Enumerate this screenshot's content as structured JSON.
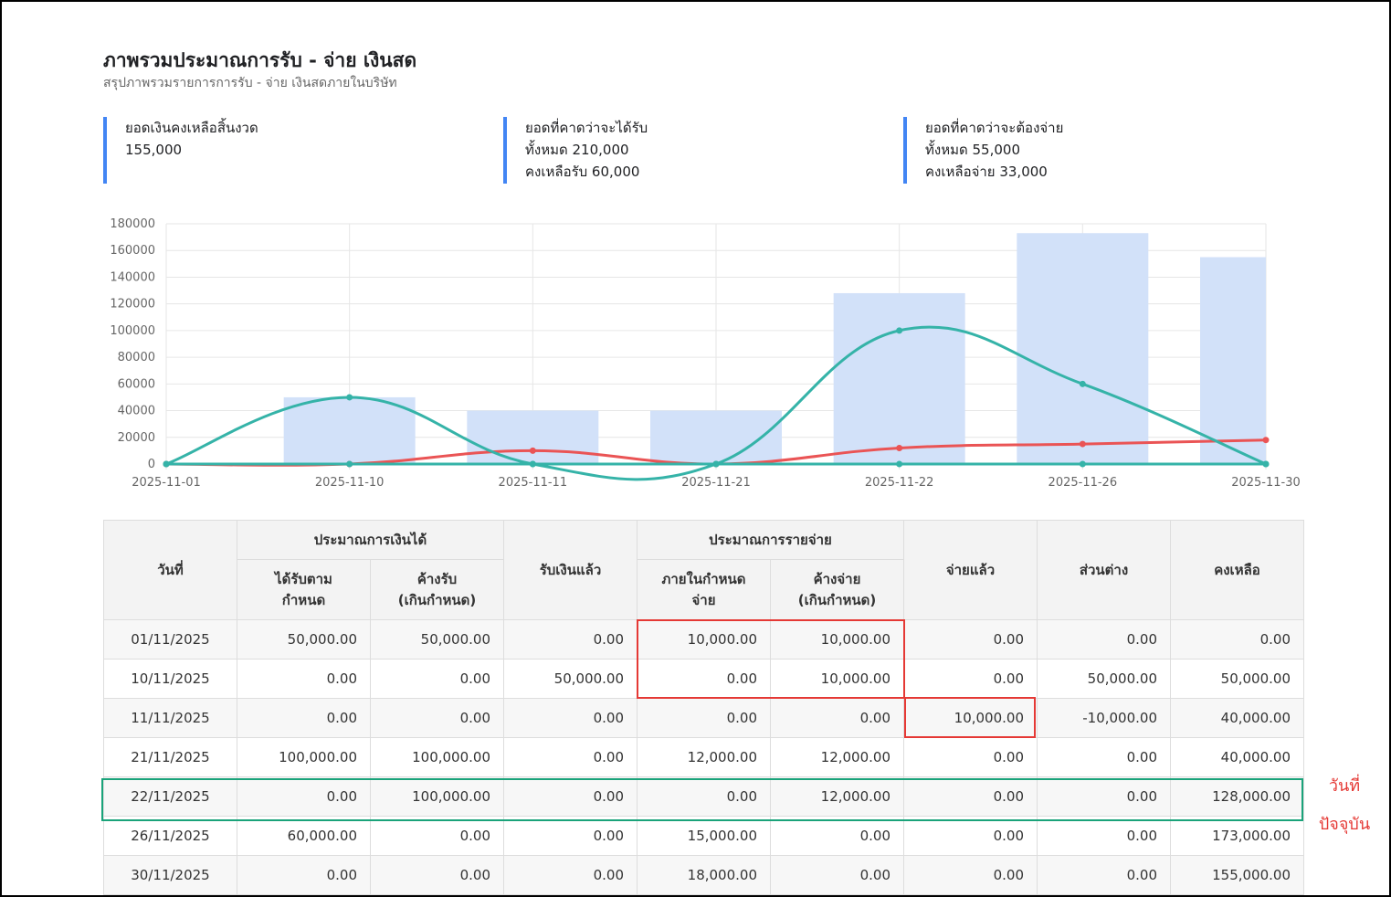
{
  "header": {
    "title": "ภาพรวมประมาณการรับ - จ่าย เงินสด",
    "subtitle": "สรุปภาพรวมรายการการรับ - จ่าย เงินสดภายในบริษัท"
  },
  "stats": [
    {
      "label": "ยอดเงินคงเหลือสิ้นงวด",
      "lines": [
        "155,000"
      ]
    },
    {
      "label": "ยอดที่คาดว่าจะได้รับ",
      "lines": [
        "ทั้งหมด 210,000",
        "คงเหลือรับ 60,000"
      ]
    },
    {
      "label": "ยอดที่คาดว่าจะต้องจ่าย",
      "lines": [
        "ทั้งหมด 55,000",
        "คงเหลือจ่าย 33,000"
      ]
    }
  ],
  "colors": {
    "accent": "#4285f4",
    "bar": "#d2e1f9",
    "receive_line": "#35b3a8",
    "pay_line": "#ea5455",
    "highlight_red": "#e53935",
    "highlight_green": "#1aa37a"
  },
  "chart_data": {
    "type": "bar",
    "categories": [
      "2025-11-01",
      "2025-11-10",
      "2025-11-11",
      "2025-11-21",
      "2025-11-22",
      "2025-11-26",
      "2025-11-30"
    ],
    "yticks": [
      "180000",
      "160000",
      "140000",
      "120000",
      "100000",
      "80000",
      "60000",
      "40000",
      "20000",
      "0"
    ],
    "ylim": [
      0,
      180000
    ],
    "series": [
      {
        "type": "bar",
        "values": [
          0,
          50000,
          40000,
          40000,
          128000,
          173000,
          155000
        ]
      },
      {
        "type": "line",
        "values": [
          0,
          50000,
          0,
          0,
          100000,
          60000,
          0
        ]
      },
      {
        "type": "line",
        "values": [
          0,
          0,
          10000,
          0,
          12000,
          15000,
          18000
        ]
      }
    ],
    "grid": true
  },
  "table": {
    "headers": {
      "date": "วันที่",
      "income_group": "ประมาณการเงินได้",
      "income_due_1": "ได้รับตาม",
      "income_due_2": "กำหนด",
      "income_over_1": "ค้างรับ",
      "income_over_2": "(เกินกำหนด)",
      "received": "รับเงินแล้ว",
      "expense_group": "ประมาณการรายจ่าย",
      "expense_due_1": "ภายในกำหนด",
      "expense_due_2": "จ่าย",
      "expense_over_1": "ค้างจ่าย",
      "expense_over_2": "(เกินกำหนด)",
      "paid": "จ่ายแล้ว",
      "diff": "ส่วนต่าง",
      "balance": "คงเหลือ"
    },
    "rows": [
      {
        "date": "01/11/2025",
        "income_due": "50,000.00",
        "income_over": "50,000.00",
        "received": "0.00",
        "expense_due": "10,000.00",
        "expense_over": "10,000.00",
        "paid": "0.00",
        "diff": "0.00",
        "balance": "0.00"
      },
      {
        "date": "10/11/2025",
        "income_due": "0.00",
        "income_over": "0.00",
        "received": "50,000.00",
        "expense_due": "0.00",
        "expense_over": "10,000.00",
        "paid": "0.00",
        "diff": "50,000.00",
        "balance": "50,000.00"
      },
      {
        "date": "11/11/2025",
        "income_due": "0.00",
        "income_over": "0.00",
        "received": "0.00",
        "expense_due": "0.00",
        "expense_over": "0.00",
        "paid": "10,000.00",
        "diff": "-10,000.00",
        "balance": "40,000.00"
      },
      {
        "date": "21/11/2025",
        "income_due": "100,000.00",
        "income_over": "100,000.00",
        "received": "0.00",
        "expense_due": "12,000.00",
        "expense_over": "12,000.00",
        "paid": "0.00",
        "diff": "0.00",
        "balance": "40,000.00"
      },
      {
        "date": "22/11/2025",
        "income_due": "0.00",
        "income_over": "100,000.00",
        "received": "0.00",
        "expense_due": "0.00",
        "expense_over": "12,000.00",
        "paid": "0.00",
        "diff": "0.00",
        "balance": "128,000.00"
      },
      {
        "date": "26/11/2025",
        "income_due": "60,000.00",
        "income_over": "0.00",
        "received": "0.00",
        "expense_due": "15,000.00",
        "expense_over": "0.00",
        "paid": "0.00",
        "diff": "0.00",
        "balance": "173,000.00"
      },
      {
        "date": "30/11/2025",
        "income_due": "0.00",
        "income_over": "0.00",
        "received": "0.00",
        "expense_due": "18,000.00",
        "expense_over": "0.00",
        "paid": "0.00",
        "diff": "0.00",
        "balance": "155,000.00"
      }
    ]
  },
  "annotation": {
    "line1": "วันที่",
    "line2": "ปัจจุบัน"
  }
}
